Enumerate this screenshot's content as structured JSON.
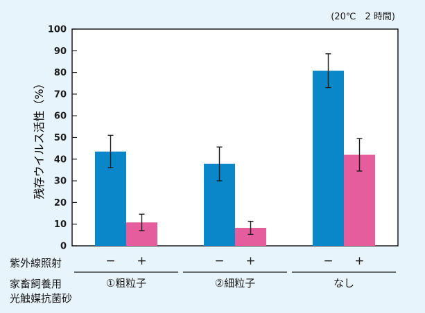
{
  "chart_data": {
    "type": "bar",
    "note": "(20℃　2 時間)",
    "ylabel": "残存ウイルス活性（%）",
    "ylim": [
      0,
      100
    ],
    "yticks": [
      0,
      10,
      20,
      30,
      40,
      50,
      60,
      70,
      80,
      90,
      100
    ],
    "grid": false,
    "categories": [
      "①粗粒子",
      "②細粒子",
      "なし"
    ],
    "series": [
      {
        "name": "−",
        "color": "#0a87c9",
        "values": [
          43.5,
          37.8,
          80.8
        ],
        "errors": [
          7.5,
          7.8,
          7.8
        ]
      },
      {
        "name": "+",
        "color": "#e55d9c",
        "values": [
          10.8,
          8.3,
          42.0
        ],
        "errors": [
          3.8,
          3.0,
          7.5
        ]
      }
    ],
    "rows": {
      "uv_label": "紫外線照射",
      "uv_signs": [
        "−",
        "+"
      ],
      "sample_label_line1": "家畜飼養用",
      "sample_label_line2": "光触媒抗菌砂"
    }
  }
}
